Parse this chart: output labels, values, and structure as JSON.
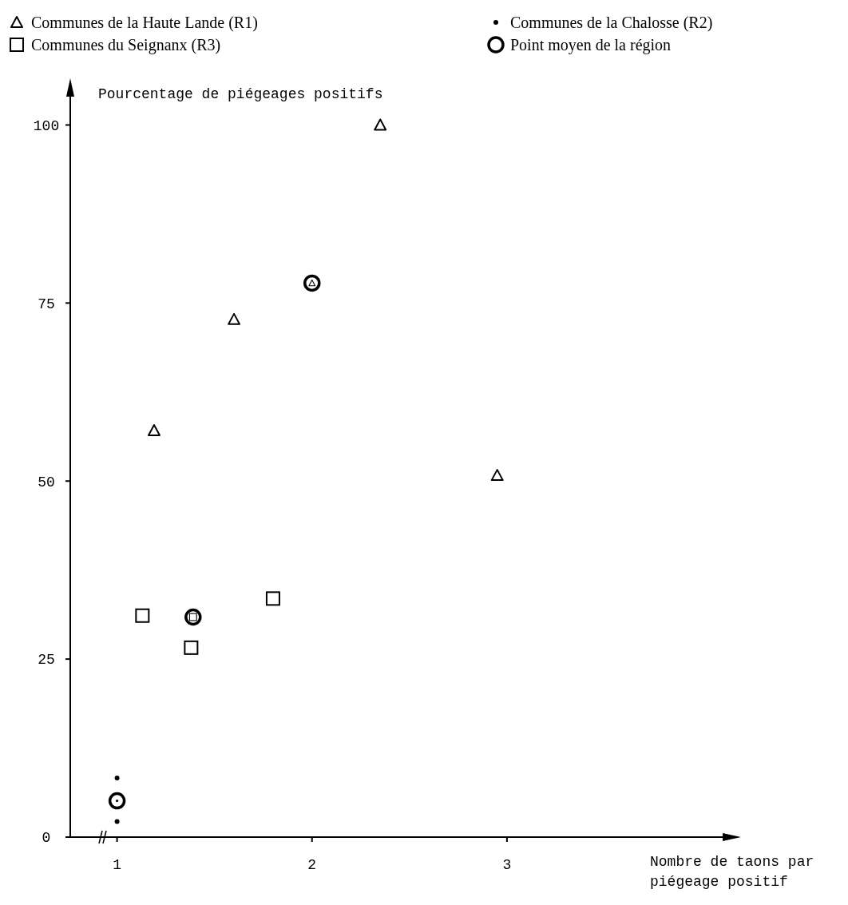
{
  "chart_data": {
    "type": "scatter",
    "xlabel": "Nombre de taons par piégeage positif",
    "ylabel": "Pourcentage de piégeages positifs",
    "xlim": [
      0.76,
      4.18
    ],
    "ylim": [
      0,
      106
    ],
    "xticks": [
      1,
      2,
      3
    ],
    "yticks": [
      0,
      25,
      50,
      75,
      100
    ],
    "grid": false,
    "legend": "top",
    "series": [
      {
        "name": "Communes de la Haute Lande (R1)",
        "color": "#000000",
        "marker": "triangle",
        "x": [
          1.19,
          1.6,
          2.35,
          2.95
        ],
        "values": [
          57.1,
          72.7,
          100,
          50.8
        ]
      },
      {
        "name": "Communes de la Chalosse (R2)",
        "color": "#000000",
        "marker": "circle",
        "x": [
          1,
          1
        ],
        "values": [
          8.3,
          2.2
        ]
      },
      {
        "name": "Communes du Seignanx (R3)",
        "color": "#000000",
        "marker": "square",
        "x": [
          1.13,
          1.38,
          1.8
        ],
        "values": [
          31.1,
          26.6,
          33.5
        ]
      },
      {
        "name": "Point moyen de la région",
        "color": "#000000",
        "marker": "circle",
        "x": [
          2,
          1,
          1.39
        ],
        "values": [
          77.8,
          5.1,
          30.9
        ]
      }
    ]
  }
}
